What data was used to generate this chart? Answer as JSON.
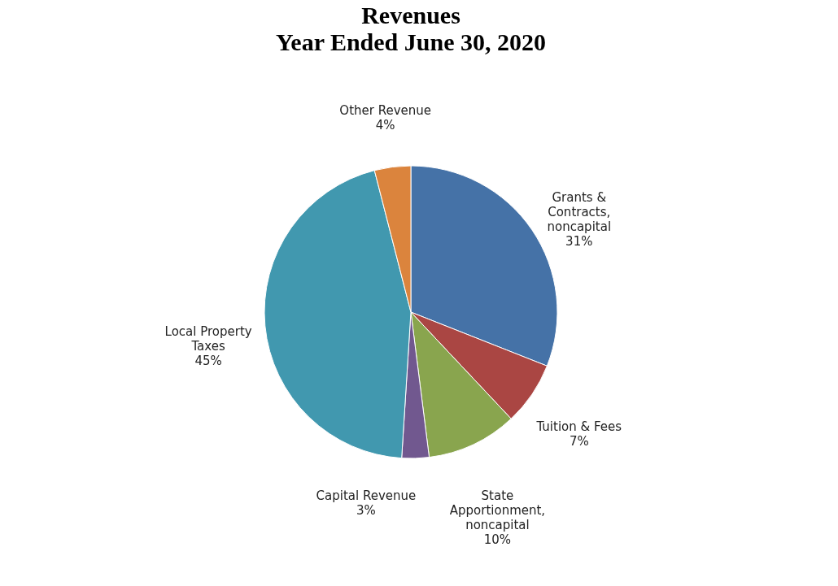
{
  "chart_data": {
    "type": "pie",
    "title": "Revenues",
    "subtitle": "Year Ended June 30, 2020",
    "categories": [
      "Grants & Contracts, noncapital",
      "Tuition & Fees",
      "State Apportionment, noncapital",
      "Capital Revenue",
      "Local Property Taxes",
      "Other Revenue"
    ],
    "values": [
      31,
      7,
      10,
      3,
      45,
      4
    ],
    "value_labels": [
      "31%",
      "7%",
      "10%",
      "3%",
      "45%",
      "4%"
    ],
    "colors": [
      "#4572a7",
      "#aa4643",
      "#89a54e",
      "#71588f",
      "#4198af",
      "#db843d"
    ],
    "legend": false
  }
}
